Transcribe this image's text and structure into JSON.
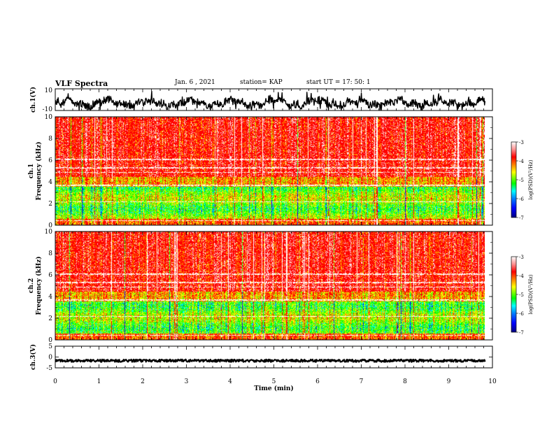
{
  "header": {
    "title": "VLF Spectra",
    "date": "Jan. 6 , 2021",
    "station": "station= KAP",
    "start": "start UT = 17: 50: 1"
  },
  "colors": {
    "background": "#ffffff",
    "trace": "#000000",
    "palette": [
      "#000080",
      "#0000ff",
      "#0080ff",
      "#00ffff",
      "#00ff80",
      "#00ff00",
      "#80ff00",
      "#ffff00",
      "#ff8000",
      "#ff0000",
      "#ffc0c0",
      "#ffffff"
    ]
  },
  "chart_data": [
    {
      "id": "ch1-waveform",
      "type": "line",
      "ylabel": "ch.1(V)",
      "xlim": [
        0,
        10
      ],
      "ylim": [
        -10,
        10
      ],
      "yticks": [
        "10",
        "-10"
      ],
      "data_end_min": 9.83
    },
    {
      "id": "ch1-spectrogram",
      "type": "heatmap",
      "ylabel_channel": "ch.1",
      "ylabel": "Frequency (kHz)",
      "xlim": [
        0,
        10
      ],
      "ylim": [
        0,
        10
      ],
      "yticks": [
        "0",
        "2",
        "4",
        "6",
        "8",
        "10"
      ],
      "colorbar": {
        "label": "log(PSD)(V²/Hz)",
        "range": [
          -7,
          -3
        ],
        "ticks": [
          "-3",
          "-4",
          "-5",
          "-6",
          "-7"
        ]
      }
    },
    {
      "id": "ch2-spectrogram",
      "type": "heatmap",
      "ylabel_channel": "ch.2",
      "ylabel": "Frequency (kHz)",
      "xlim": [
        0,
        10
      ],
      "ylim": [
        0,
        10
      ],
      "yticks": [
        "0",
        "2",
        "4",
        "6",
        "8",
        "10"
      ],
      "colorbar": {
        "label": "log(PSD)(V²/Hz)",
        "range": [
          -7,
          -3
        ],
        "ticks": [
          "-3",
          "-4",
          "-5",
          "-6",
          "-7"
        ]
      }
    },
    {
      "id": "ch3-waveform",
      "type": "line",
      "ylabel": "ch.3(V)",
      "xlim": [
        0,
        10
      ],
      "ylim": [
        -5,
        5
      ],
      "yticks": [
        "5",
        "0",
        "-5"
      ],
      "xlabel": "Time (min)",
      "xticks": [
        "0",
        "1",
        "2",
        "3",
        "4",
        "5",
        "6",
        "7",
        "8",
        "9",
        "10"
      ],
      "data_end_min": 9.83
    }
  ]
}
